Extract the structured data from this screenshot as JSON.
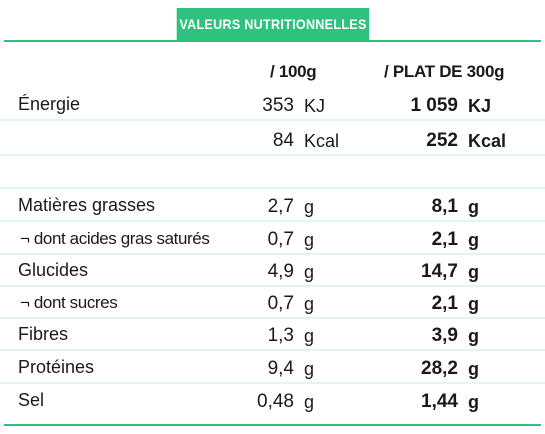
{
  "header": {
    "title": "VALEURS NUTRITIONNELLES"
  },
  "columns": {
    "per100": "/ 100g",
    "perPlate": "/ PLAT DE 300g"
  },
  "rows": [
    {
      "label": "Énergie",
      "v100": "353",
      "u100": "KJ",
      "vplat": "1 059",
      "uplat": "KJ"
    },
    {
      "label": "",
      "v100": "84",
      "u100": "Kcal",
      "vplat": "252",
      "uplat": "Kcal"
    },
    {
      "label": "Matières grasses",
      "v100": "2,7",
      "u100": "g",
      "vplat": "8,1",
      "uplat": "g"
    },
    {
      "label": "¬ dont acides gras saturés",
      "v100": "0,7",
      "u100": "g",
      "vplat": "2,1",
      "uplat": "g"
    },
    {
      "label": "Glucides",
      "v100": "4,9",
      "u100": "g",
      "vplat": "14,7",
      "uplat": "g"
    },
    {
      "label": "¬ dont sucres",
      "v100": "0,7",
      "u100": "g",
      "vplat": "2,1",
      "uplat": "g"
    },
    {
      "label": "Fibres",
      "v100": "1,3",
      "u100": "g",
      "vplat": "3,9",
      "uplat": "g"
    },
    {
      "label": "Protéines",
      "v100": "9,4",
      "u100": "g",
      "vplat": "28,2",
      "uplat": "g"
    },
    {
      "label": "Sel",
      "v100": "0,48",
      "u100": "g",
      "vplat": "1,44",
      "uplat": "g"
    }
  ],
  "colors": {
    "accent": "#2ec27e",
    "rowLine": "#e6f5ec"
  }
}
